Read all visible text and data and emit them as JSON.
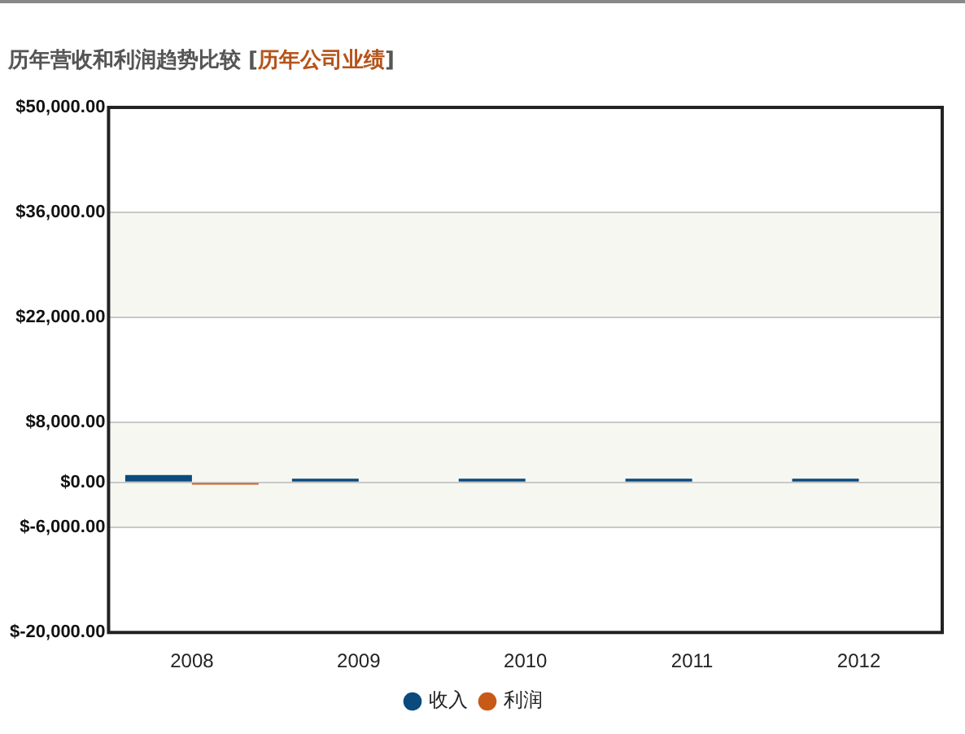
{
  "chart_data": {
    "type": "bar",
    "title": "历年营收和利润趋势比较 [历年公司业绩]",
    "categories": [
      "2008",
      "2009",
      "2010",
      "2011",
      "2012"
    ],
    "series": [
      {
        "name": "收入",
        "color": "#0b4a7d",
        "values": [
          1000,
          500,
          500,
          500,
          500
        ]
      },
      {
        "name": "利润",
        "color": "#c85a17",
        "values": [
          -300,
          0,
          0,
          0,
          0
        ]
      }
    ],
    "ylim": [
      -20000,
      50000
    ],
    "yticks": [
      {
        "value": -20000,
        "label": "$-20,000.00"
      },
      {
        "value": -6000,
        "label": "$-6,000.00"
      },
      {
        "value": 0,
        "label": "$0.00"
      },
      {
        "value": 8000,
        "label": "$8,000.00"
      },
      {
        "value": 22000,
        "label": "$22,000.00"
      },
      {
        "value": 36000,
        "label": "$36,000.00"
      },
      {
        "value": 50000,
        "label": "$50,000.00"
      }
    ],
    "bands": [
      {
        "axis": "y",
        "from": 22000,
        "to": 36000,
        "color": "#f7f7f2"
      },
      {
        "axis": "y",
        "from": -6000,
        "to": 8000,
        "color": "#f7f7f2"
      }
    ],
    "grid": "y",
    "legend": "bottom"
  }
}
